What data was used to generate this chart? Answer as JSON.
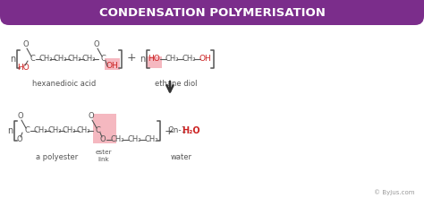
{
  "title": "CONDENSATION POLYMERISATION",
  "title_bg": "#7B2D8B",
  "title_text_color": "#FFFFFF",
  "bg_color": "#FFFFFF",
  "text_color": "#555555",
  "red_color": "#CC2222",
  "pink_bg": "#F5B8C0",
  "arrow_color": "#333333",
  "label_hex_acid": "hexanedioic acid",
  "label_ethane": "ethane diol",
  "label_polyester": "a polyester",
  "label_ester": "ester\nlink",
  "label_water": "water",
  "copyright": "© Byjus.com",
  "figw": 4.74,
  "figh": 2.21,
  "dpi": 100
}
